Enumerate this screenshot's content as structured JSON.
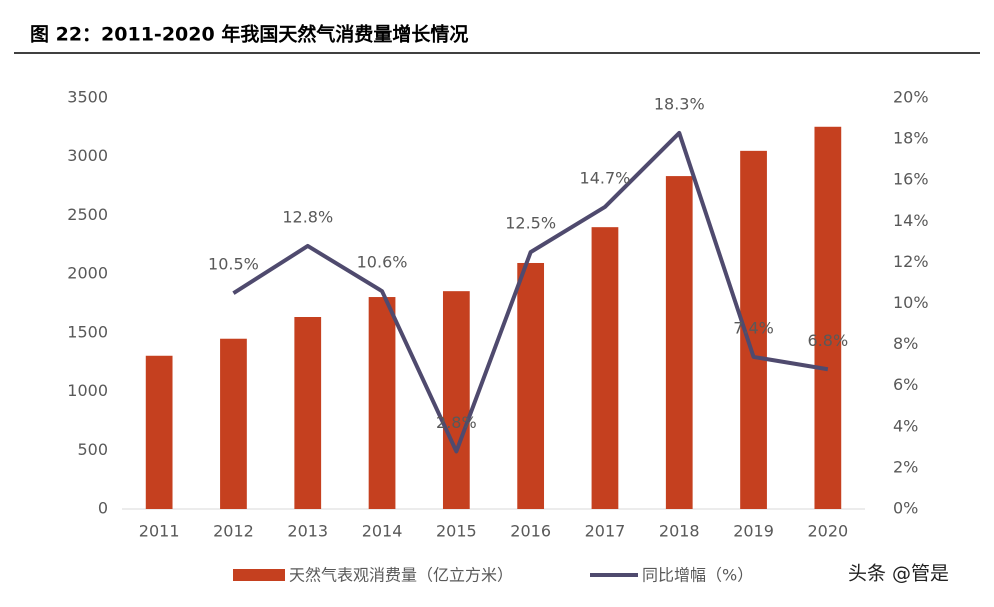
{
  "chart_data": {
    "type": "bar-line",
    "title": "图 22：2011-2020 年我国天然气消费量增长情况",
    "categories": [
      "2011",
      "2012",
      "2013",
      "2014",
      "2015",
      "2016",
      "2017",
      "2018",
      "2019",
      "2020"
    ],
    "series": [
      {
        "name": "天然气表观消费量（亿立方米）",
        "color": "#c5401f",
        "type": "bar",
        "values": [
          1305,
          1450,
          1635,
          1805,
          1855,
          2095,
          2400,
          2835,
          3050,
          3255
        ]
      },
      {
        "name": "同比增幅（%）",
        "color": "#4f4a6e",
        "type": "line",
        "axis": "y2",
        "values": [
          null,
          10.5,
          12.8,
          10.6,
          2.8,
          12.5,
          14.7,
          18.3,
          7.4,
          6.8
        ],
        "value_labels": [
          null,
          "10.5%",
          "12.8%",
          "10.6%",
          "2.8%",
          "12.5%",
          "14.7%",
          "18.3%",
          "7.4%",
          "6.8%"
        ]
      }
    ],
    "ylim": [
      0,
      3500
    ],
    "yticks": [
      0,
      500,
      1000,
      1500,
      2000,
      2500,
      3000,
      3500
    ],
    "y2lim": [
      0,
      20
    ],
    "y2ticks": [
      {
        "value": 0,
        "label": "0%"
      },
      {
        "value": 2,
        "label": "2%"
      },
      {
        "value": 4,
        "label": "4%"
      },
      {
        "value": 6,
        "label": "6%"
      },
      {
        "value": 8,
        "label": "8%"
      },
      {
        "value": 10,
        "label": "10%"
      },
      {
        "value": 12,
        "label": "12%"
      },
      {
        "value": 14,
        "label": "14%"
      },
      {
        "value": 16,
        "label": "16%"
      },
      {
        "value": 18,
        "label": "18%"
      },
      {
        "value": 20,
        "label": "20%"
      }
    ],
    "grid": false,
    "watermark": "头条 @管是"
  }
}
